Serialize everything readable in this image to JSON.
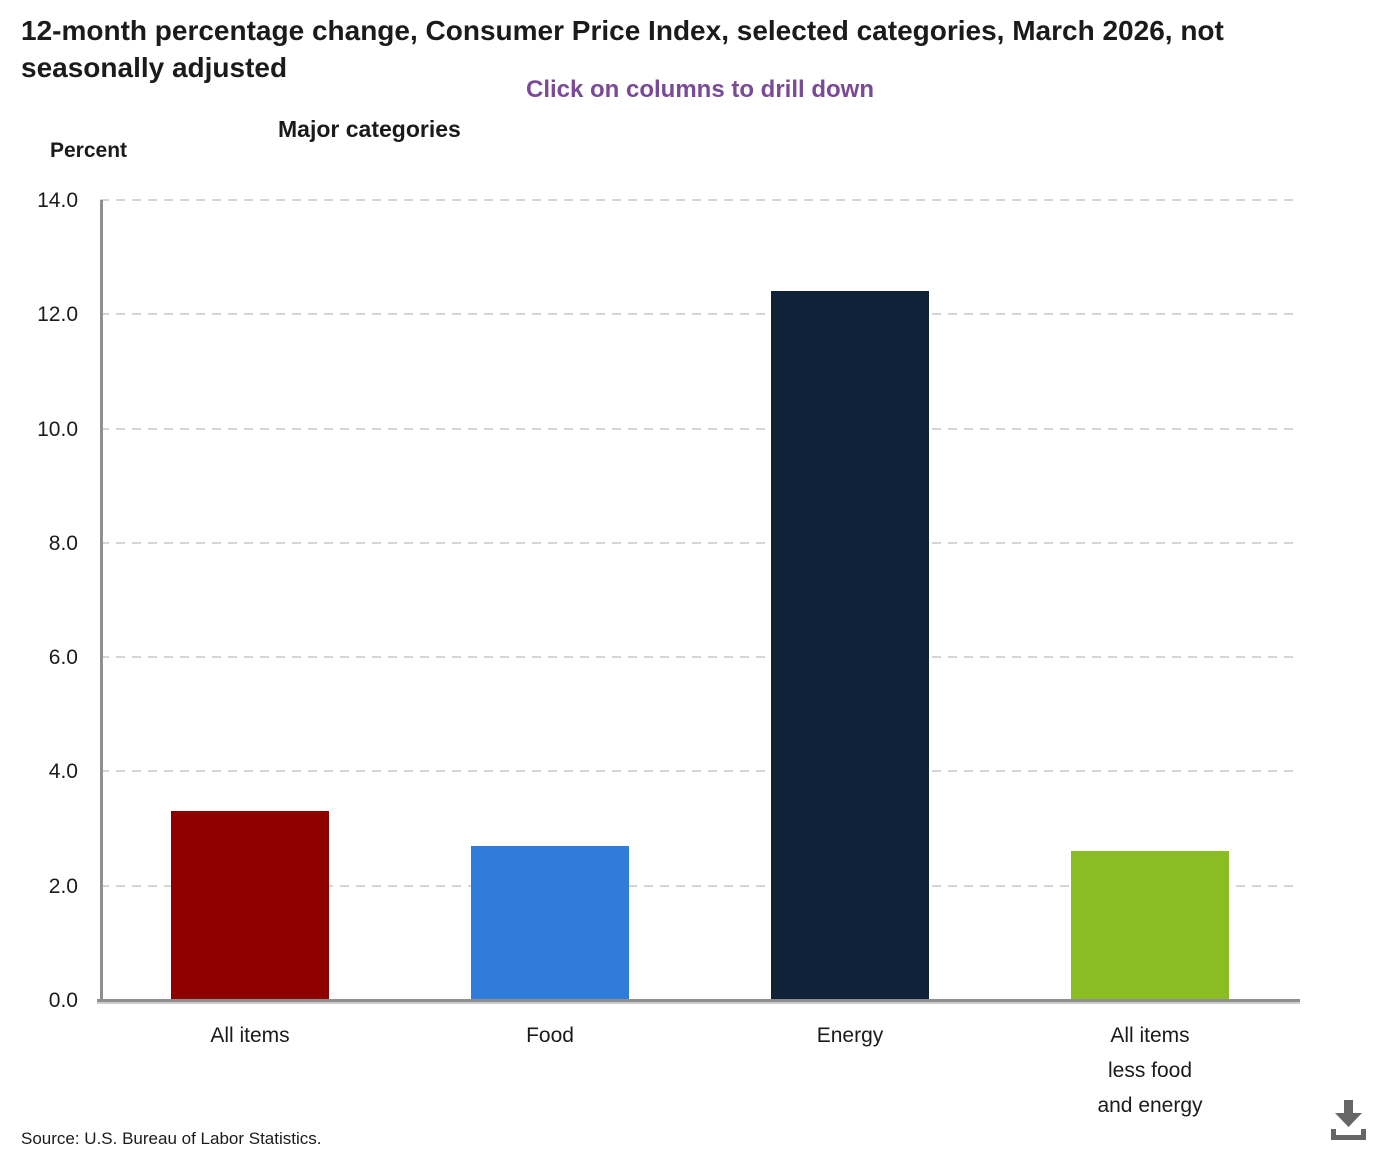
{
  "header": {
    "title": "12-month percentage change, Consumer Price Index, selected categories, March 2026, not seasonally adjusted",
    "subtitle": "Click on columns to drill down",
    "chart_label": "Major categories",
    "y_axis_title": "Percent"
  },
  "footer": {
    "source": "Source: U.S. Bureau of Labor Statistics.",
    "download_icon": "download-icon"
  },
  "colors": {
    "subtitle_purple": "#7A4A96",
    "axis_gray": "#8f8f8f",
    "gridline_gray": "#d5d5d5",
    "icon_gray": "#666666",
    "bar_all_items": "#8E0000",
    "bar_food": "#307CDA",
    "bar_energy": "#0F2238",
    "bar_all_items_less_food_and_energy": "#8ABD24"
  },
  "chart_data": {
    "type": "bar",
    "title": "Major categories",
    "xlabel": "",
    "ylabel": "Percent",
    "categories": [
      "All items",
      "Food",
      "Energy",
      "All items\nless food\nand energy"
    ],
    "values": [
      3.3,
      2.7,
      12.4,
      2.6
    ],
    "bar_colors": [
      "#8E0000",
      "#307CDA",
      "#0F2238",
      "#8ABD24"
    ],
    "ylim": [
      0,
      14
    ],
    "ytick_step": 2,
    "ytick_labels": [
      "0.0",
      "2.0",
      "4.0",
      "6.0",
      "8.0",
      "10.0",
      "12.0",
      "14.0"
    ],
    "grid": "horizontal-dashed",
    "legend": "none",
    "note": "Click on columns to drill down"
  }
}
